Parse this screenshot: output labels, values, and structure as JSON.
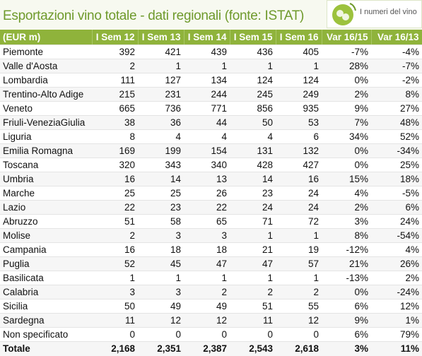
{
  "header": {
    "title": "Esportazioni vino totale - dati regionali (fonte: ISTAT)",
    "logo": "I numeri del vino"
  },
  "table": {
    "columns": [
      "(EUR m)",
      "I Sem 12",
      "I Sem 13",
      "I Sem 14",
      "I Sem 15",
      "I Sem 16",
      "Var 16/15",
      "Var 16/13"
    ],
    "rows": [
      [
        "Piemonte",
        "392",
        "421",
        "439",
        "436",
        "405",
        "-7%",
        "-4%"
      ],
      [
        "Valle d'Aosta",
        "2",
        "1",
        "1",
        "1",
        "1",
        "28%",
        "-7%"
      ],
      [
        "Lombardia",
        "111",
        "127",
        "134",
        "124",
        "124",
        "0%",
        "-2%"
      ],
      [
        "Trentino-Alto Adige",
        "215",
        "231",
        "244",
        "245",
        "249",
        "2%",
        "8%"
      ],
      [
        "Veneto",
        "665",
        "736",
        "771",
        "856",
        "935",
        "9%",
        "27%"
      ],
      [
        "Friuli-VeneziaGiulia",
        "38",
        "36",
        "44",
        "50",
        "53",
        "7%",
        "48%"
      ],
      [
        "Liguria",
        "8",
        "4",
        "4",
        "4",
        "6",
        "34%",
        "52%"
      ],
      [
        "Emilia Romagna",
        "169",
        "199",
        "154",
        "131",
        "132",
        "0%",
        "-34%"
      ],
      [
        "Toscana",
        "320",
        "343",
        "340",
        "428",
        "427",
        "0%",
        "25%"
      ],
      [
        "Umbria",
        "16",
        "14",
        "13",
        "14",
        "16",
        "15%",
        "18%"
      ],
      [
        "Marche",
        "25",
        "25",
        "26",
        "23",
        "24",
        "4%",
        "-5%"
      ],
      [
        "Lazio",
        "22",
        "23",
        "22",
        "24",
        "24",
        "2%",
        "6%"
      ],
      [
        "Abruzzo",
        "51",
        "58",
        "65",
        "71",
        "72",
        "3%",
        "24%"
      ],
      [
        "Molise",
        "2",
        "3",
        "3",
        "1",
        "1",
        "8%",
        "-54%"
      ],
      [
        "Campania",
        "16",
        "18",
        "18",
        "21",
        "19",
        "-12%",
        "4%"
      ],
      [
        "Puglia",
        "52",
        "45",
        "47",
        "47",
        "57",
        "21%",
        "26%"
      ],
      [
        "Basilicata",
        "1",
        "1",
        "1",
        "1",
        "1",
        "-13%",
        "2%"
      ],
      [
        "Calabria",
        "3",
        "3",
        "2",
        "2",
        "2",
        "0%",
        "-24%"
      ],
      [
        "Sicilia",
        "50",
        "49",
        "49",
        "51",
        "55",
        "6%",
        "12%"
      ],
      [
        "Sardegna",
        "11",
        "12",
        "12",
        "11",
        "12",
        "9%",
        "1%"
      ],
      [
        "Non specificato",
        "0",
        "0",
        "0",
        "0",
        "0",
        "6%",
        "79%"
      ]
    ],
    "total": [
      "Totale",
      "2,168",
      "2,351",
      "2,387",
      "2,543",
      "2,618",
      "3%",
      "11%"
    ]
  }
}
